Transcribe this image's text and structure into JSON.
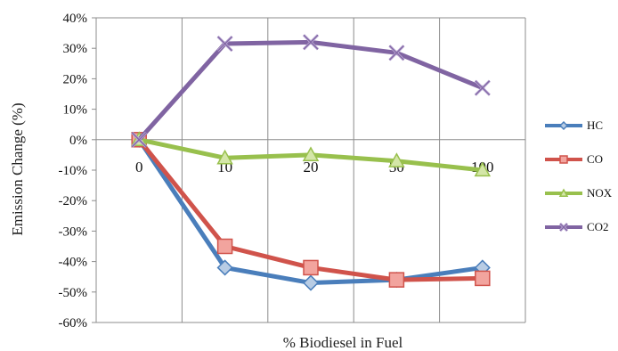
{
  "chart_data": {
    "type": "line",
    "xlabel": "% Biodiesel in Fuel",
    "ylabel": "Emission Change (%)",
    "categories": [
      "0",
      "10",
      "20",
      "30",
      "100"
    ],
    "ylim": [
      -60,
      40
    ],
    "yticks": [
      40,
      30,
      20,
      10,
      0,
      -10,
      -20,
      -30,
      -40,
      -50,
      -60
    ],
    "ytick_labels": [
      "40%",
      "30%",
      "20%",
      "10%",
      "0%",
      "-10%",
      "-20%",
      "-30%",
      "-40%",
      "-50%",
      "-60%"
    ],
    "grid": "vertical",
    "legend": "right",
    "series": [
      {
        "name": "HC",
        "color": "#4a7ebb",
        "marker": "diamond",
        "values": [
          0,
          -42,
          -47,
          -46,
          -42
        ]
      },
      {
        "name": "CO",
        "color": "#d0534b",
        "marker": "square",
        "values": [
          0,
          -35,
          -42,
          -46,
          -45.5
        ]
      },
      {
        "name": "NOX",
        "color": "#98c04d",
        "marker": "triangle",
        "values": [
          0,
          -6,
          -5,
          -7,
          -10
        ]
      },
      {
        "name": "CO2",
        "color": "#8064a2",
        "marker": "x",
        "values": [
          0,
          31.5,
          32,
          28.5,
          17
        ]
      }
    ]
  }
}
